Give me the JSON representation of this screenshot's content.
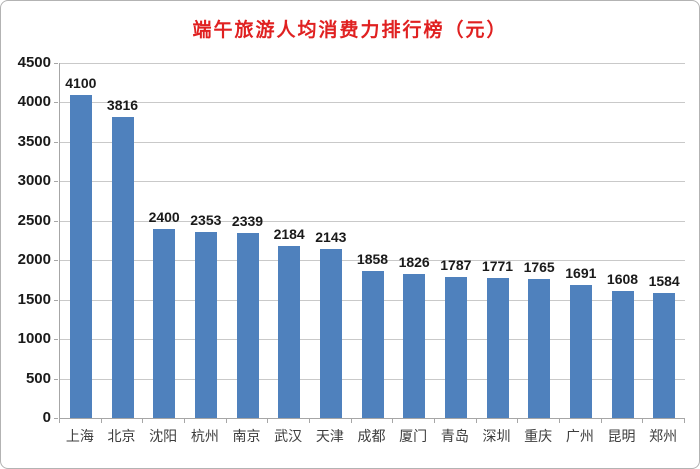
{
  "chart_data": {
    "type": "bar",
    "title": "端午旅游人均消费力排行榜（元）",
    "categories": [
      "上海",
      "北京",
      "沈阳",
      "杭州",
      "南京",
      "武汉",
      "天津",
      "成都",
      "厦门",
      "青岛",
      "深圳",
      "重庆",
      "广州",
      "昆明",
      "郑州"
    ],
    "values": [
      4100,
      3816,
      2400,
      2353,
      2339,
      2184,
      2143,
      1858,
      1826,
      1787,
      1771,
      1765,
      1691,
      1608,
      1584
    ],
    "xlabel": "",
    "ylabel": "",
    "ylim": [
      0,
      4500
    ],
    "ytick_step": 500,
    "yticks": [
      0,
      500,
      1000,
      1500,
      2000,
      2500,
      3000,
      3500,
      4000,
      4500
    ],
    "grid": true,
    "legend_position": "none",
    "data_labels": true,
    "colors": {
      "bar": "#4f81bd",
      "title": "#e02121",
      "gridline": "#c9c9c9",
      "axis": "#a6a6a6",
      "value_label": "#1a1a1a",
      "category_label": "#3d3d3d",
      "background": "#ffffff",
      "frame_border": "#b3b3b3"
    }
  }
}
